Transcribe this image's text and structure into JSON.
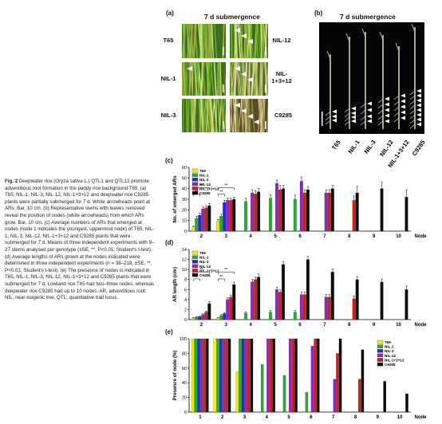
{
  "caption": {
    "label": "Fig. 2",
    "text": "Deepwater rice (Oryza sativa L.) QTL1 and QTL12 promote adventitious root formation in the paddy rice background T65. (a) T65, NIL-1, NIL-3, NIL-12, NIL-1+3+12 and deepwater rice C9285 plants were partially submerged for 7 d. White arrowheads point at ARs. Bar, 10 cm. (b) Representative stems with leaves removed reveal the position of nodes (white arrowheads) from which ARs grow. Bar, 10 cm. (c) Average numbers of ARs that emerged at nodes (node 1 indicates the youngest, uppermost node) of T65, NIL-1, NIL-3, NIL-12, NIL-1+3+12 and C9285 plants that were submerged for 7 d. Means of three independent experiments with 9–27 stems analysed per genotype (±SE, **, P<0.01; Student's t-test). (d) Average lengths of ARs grown at the nodes indicated were determined in three independent experiments (n = 38–218, ±SE, **, P<0.01; Student's t-test). (e) The presence of nodes is indicated in T65, NIL-1, NIL-3, NIL-12, NIL-1+3+12 and C9285 plants that were submerged for 7 d. Lowland rice T65 had two–three nodes, whereas deepwater rice C9285 had up to 10 nodes. AR, adventitious root; NIL, near-isogenic line; QTL, quantitative trait locus."
  },
  "panel_a": {
    "letter": "(a)",
    "title": "7 d submergence",
    "labels": [
      "T65",
      "NIL-12",
      "NIL-1",
      "NIL-\n1+3+12",
      "NIL-3",
      "C9285"
    ]
  },
  "panel_b": {
    "letter": "(b)",
    "title": "7 d submergence",
    "labels": [
      "T65",
      "NIL-1",
      "NIL-3",
      "NIL-12",
      "NIL-1+3+12",
      "C9285"
    ]
  },
  "colors": {
    "T65": "#f2ec1a",
    "NIL-1": "#22b22a",
    "NIL-3": "#2a2ad0",
    "NIL-12": "#8a2ab8",
    "NIL-1+3+12": "#d01e1e",
    "C9285": "#0a0a0a"
  },
  "chart_data": [
    {
      "panel": "(c)",
      "type": "bar",
      "ylabel": "No. of emerged ARs",
      "xlabel": "Node",
      "ylim": [
        0,
        60
      ],
      "yticks": [
        0,
        10,
        20,
        30,
        40,
        50,
        60
      ],
      "categories": [
        "2",
        "3",
        "4",
        "5",
        "6",
        "7",
        "8",
        "9",
        "10"
      ],
      "legend": [
        "T65",
        "NIL-1",
        "NIL-3",
        "NIL-12",
        "NIL-1+3+12",
        "C9285"
      ],
      "significance": [
        {
          "node": "2",
          "marks": [
            "**",
            "**"
          ]
        },
        {
          "node": "3",
          "marks": [
            "**",
            "**"
          ]
        }
      ],
      "series": [
        {
          "name": "T65",
          "values": [
            4,
            9,
            null,
            null,
            null,
            null,
            null,
            null,
            null
          ],
          "err": [
            1,
            2,
            null,
            null,
            null,
            null,
            null,
            null,
            null
          ]
        },
        {
          "name": "NIL-1",
          "values": [
            12,
            14,
            28,
            31,
            30,
            null,
            null,
            null,
            null
          ],
          "err": [
            2,
            2,
            3,
            3,
            4,
            null,
            null,
            null,
            null
          ]
        },
        {
          "name": "NIL-3",
          "values": [
            15,
            27,
            null,
            null,
            null,
            null,
            null,
            null,
            null
          ],
          "err": [
            2,
            2,
            null,
            null,
            null,
            null,
            null,
            null,
            null
          ]
        },
        {
          "name": "NIL-12",
          "values": [
            21,
            29,
            36,
            45,
            47,
            36,
            null,
            null,
            null
          ],
          "err": [
            2,
            2,
            3,
            3,
            4,
            3,
            null,
            null,
            null
          ]
        },
        {
          "name": "NIL-1+3+12",
          "values": [
            22,
            29,
            35,
            39,
            36,
            36,
            29,
            null,
            null
          ],
          "err": [
            2,
            2,
            3,
            4,
            3,
            3,
            4,
            null,
            null
          ]
        },
        {
          "name": "C9285",
          "values": [
            24,
            30,
            37,
            40,
            39,
            40,
            36,
            40,
            32
          ],
          "err": [
            2,
            2,
            3,
            3,
            3,
            3,
            6,
            6,
            7
          ]
        }
      ]
    },
    {
      "panel": "(d)",
      "type": "bar",
      "ylabel": "AR length (cm)",
      "xlabel": "Node",
      "ylim": [
        0,
        14
      ],
      "yticks": [
        0,
        2,
        4,
        6,
        8,
        10,
        12,
        14
      ],
      "categories": [
        "2",
        "3",
        "4",
        "5",
        "6",
        "7",
        "8",
        "9",
        "10"
      ],
      "legend": [
        "T65",
        "NIL-1",
        "NIL-3",
        "NIL-12",
        "NIL-1+3+12",
        "C9285"
      ],
      "significance": [
        {
          "node": "2",
          "marks": [
            "**",
            "**"
          ]
        },
        {
          "node": "3",
          "marks": [
            "**",
            "**"
          ]
        }
      ],
      "series": [
        {
          "name": "T65",
          "values": [
            0.3,
            0.3,
            null,
            null,
            null,
            null,
            null,
            null,
            null
          ],
          "err": [
            0.1,
            0.1,
            null,
            null,
            null,
            null,
            null,
            null,
            null
          ]
        },
        {
          "name": "NIL-1",
          "values": [
            0.5,
            0.8,
            1.3,
            1.5,
            1.5,
            null,
            null,
            null,
            null
          ],
          "err": [
            0.1,
            0.2,
            0.2,
            0.3,
            0.3,
            null,
            null,
            null,
            null
          ]
        },
        {
          "name": "NIL-3",
          "values": [
            0.6,
            1.2,
            null,
            null,
            null,
            null,
            null,
            null,
            null
          ],
          "err": [
            0.1,
            0.2,
            null,
            null,
            null,
            null,
            null,
            null,
            null
          ]
        },
        {
          "name": "NIL-12",
          "values": [
            1.0,
            4.0,
            7.5,
            6.0,
            5.0,
            4.5,
            null,
            null,
            null
          ],
          "err": [
            0.2,
            0.4,
            0.5,
            0.5,
            0.5,
            0.5,
            null,
            null,
            null
          ]
        },
        {
          "name": "NIL-1+3+12",
          "values": [
            1.5,
            4.5,
            8.0,
            5.5,
            5.0,
            4.5,
            4.2,
            null,
            null
          ],
          "err": [
            0.2,
            0.4,
            0.5,
            0.5,
            0.5,
            0.5,
            0.5,
            null,
            null
          ]
        },
        {
          "name": "C9285",
          "values": [
            3.2,
            7.0,
            8.5,
            11.0,
            12.0,
            9.5,
            8.0,
            7.5,
            6.0
          ],
          "err": [
            0.4,
            0.5,
            0.6,
            0.6,
            0.6,
            0.6,
            0.6,
            0.6,
            0.7
          ]
        }
      ]
    },
    {
      "panel": "(e)",
      "type": "bar",
      "ylabel": "Presence of node (%)",
      "xlabel": "Node",
      "ylim": [
        0,
        100
      ],
      "yticks": [
        0,
        20,
        40,
        60,
        80,
        100
      ],
      "categories": [
        "1",
        "2",
        "3",
        "4",
        "5",
        "6",
        "7",
        "8",
        "9",
        "10"
      ],
      "legend": [
        "T65",
        "NIL-1",
        "NIL-3",
        "NIL-12",
        "NIL-1+3+12",
        "C9285"
      ],
      "series": [
        {
          "name": "T65",
          "values": [
            100,
            100,
            55,
            null,
            null,
            null,
            null,
            null,
            null,
            null
          ]
        },
        {
          "name": "NIL-1",
          "values": [
            100,
            100,
            100,
            65,
            50,
            27,
            null,
            null,
            null,
            null
          ]
        },
        {
          "name": "NIL-3",
          "values": [
            100,
            100,
            100,
            null,
            null,
            null,
            null,
            null,
            null,
            null
          ]
        },
        {
          "name": "NIL-12",
          "values": [
            100,
            100,
            100,
            100,
            100,
            90,
            45,
            null,
            null,
            null
          ]
        },
        {
          "name": "NIL-1+3+12",
          "values": [
            100,
            100,
            100,
            100,
            100,
            100,
            80,
            45,
            null,
            null
          ]
        },
        {
          "name": "C9285",
          "values": [
            100,
            100,
            100,
            100,
            100,
            100,
            100,
            85,
            42,
            25
          ]
        }
      ]
    }
  ]
}
